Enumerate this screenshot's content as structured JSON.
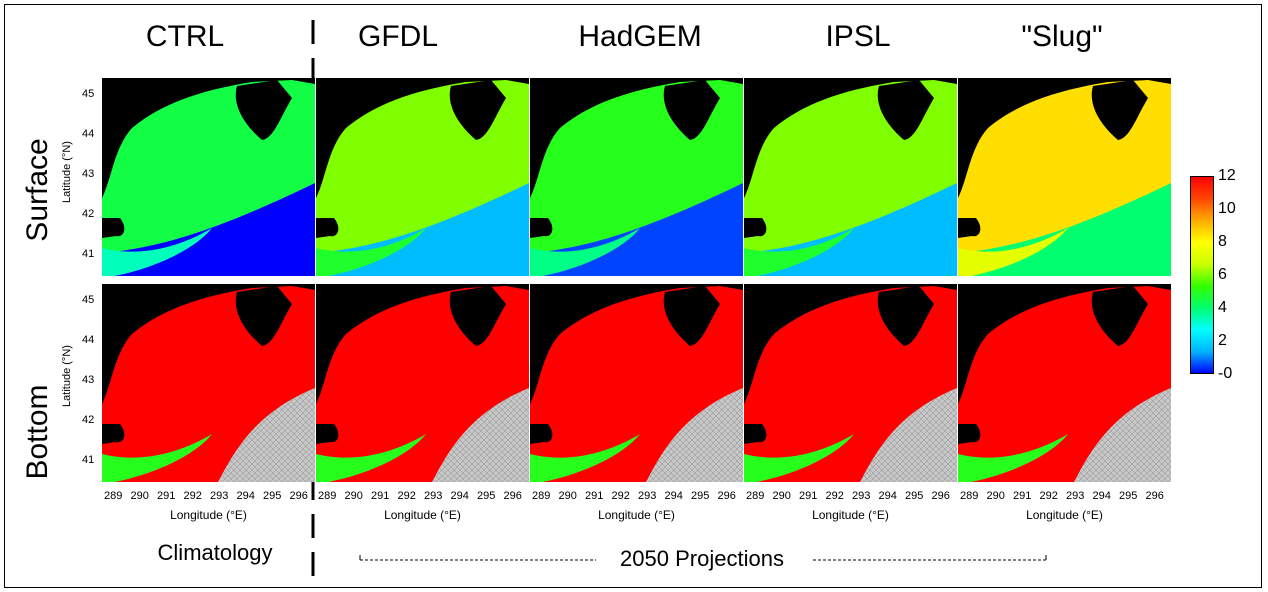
{
  "columns": [
    "CTRL",
    "GFDL",
    "HadGEM",
    "IPSL",
    "\"Slug\""
  ],
  "rows": [
    "Surface",
    "Bottom"
  ],
  "lat_axis_label": "Latitude (°N)",
  "lat_ticks": [
    "45",
    "44",
    "43",
    "42",
    "41"
  ],
  "lon_axis_label": "Longitude (°E)",
  "lon_ticks": [
    "289",
    "290",
    "291",
    "292",
    "293",
    "294",
    "295",
    "296"
  ],
  "colorbar": {
    "ticks": [
      "12",
      "10",
      "8",
      "6",
      "4",
      "2",
      "-0"
    ],
    "range": [
      0,
      12
    ],
    "colors": [
      "#0000ff",
      "#00b4ff",
      "#00ffff",
      "#00ff6e",
      "#33ff00",
      "#ccff00",
      "#ffff00",
      "#ffaa00",
      "#ff4400",
      "#ff0000"
    ]
  },
  "labels": {
    "climatology": "Climatology",
    "projections": "2050 Projections"
  },
  "panel_values": {
    "surface": [
      4.5,
      6.0,
      5.0,
      6.0,
      8.5
    ],
    "bottom": [
      12,
      12,
      12,
      12,
      12
    ]
  },
  "colors": {
    "land": "#000000",
    "no_data": "#c8c8c8",
    "frame": "#000000"
  }
}
